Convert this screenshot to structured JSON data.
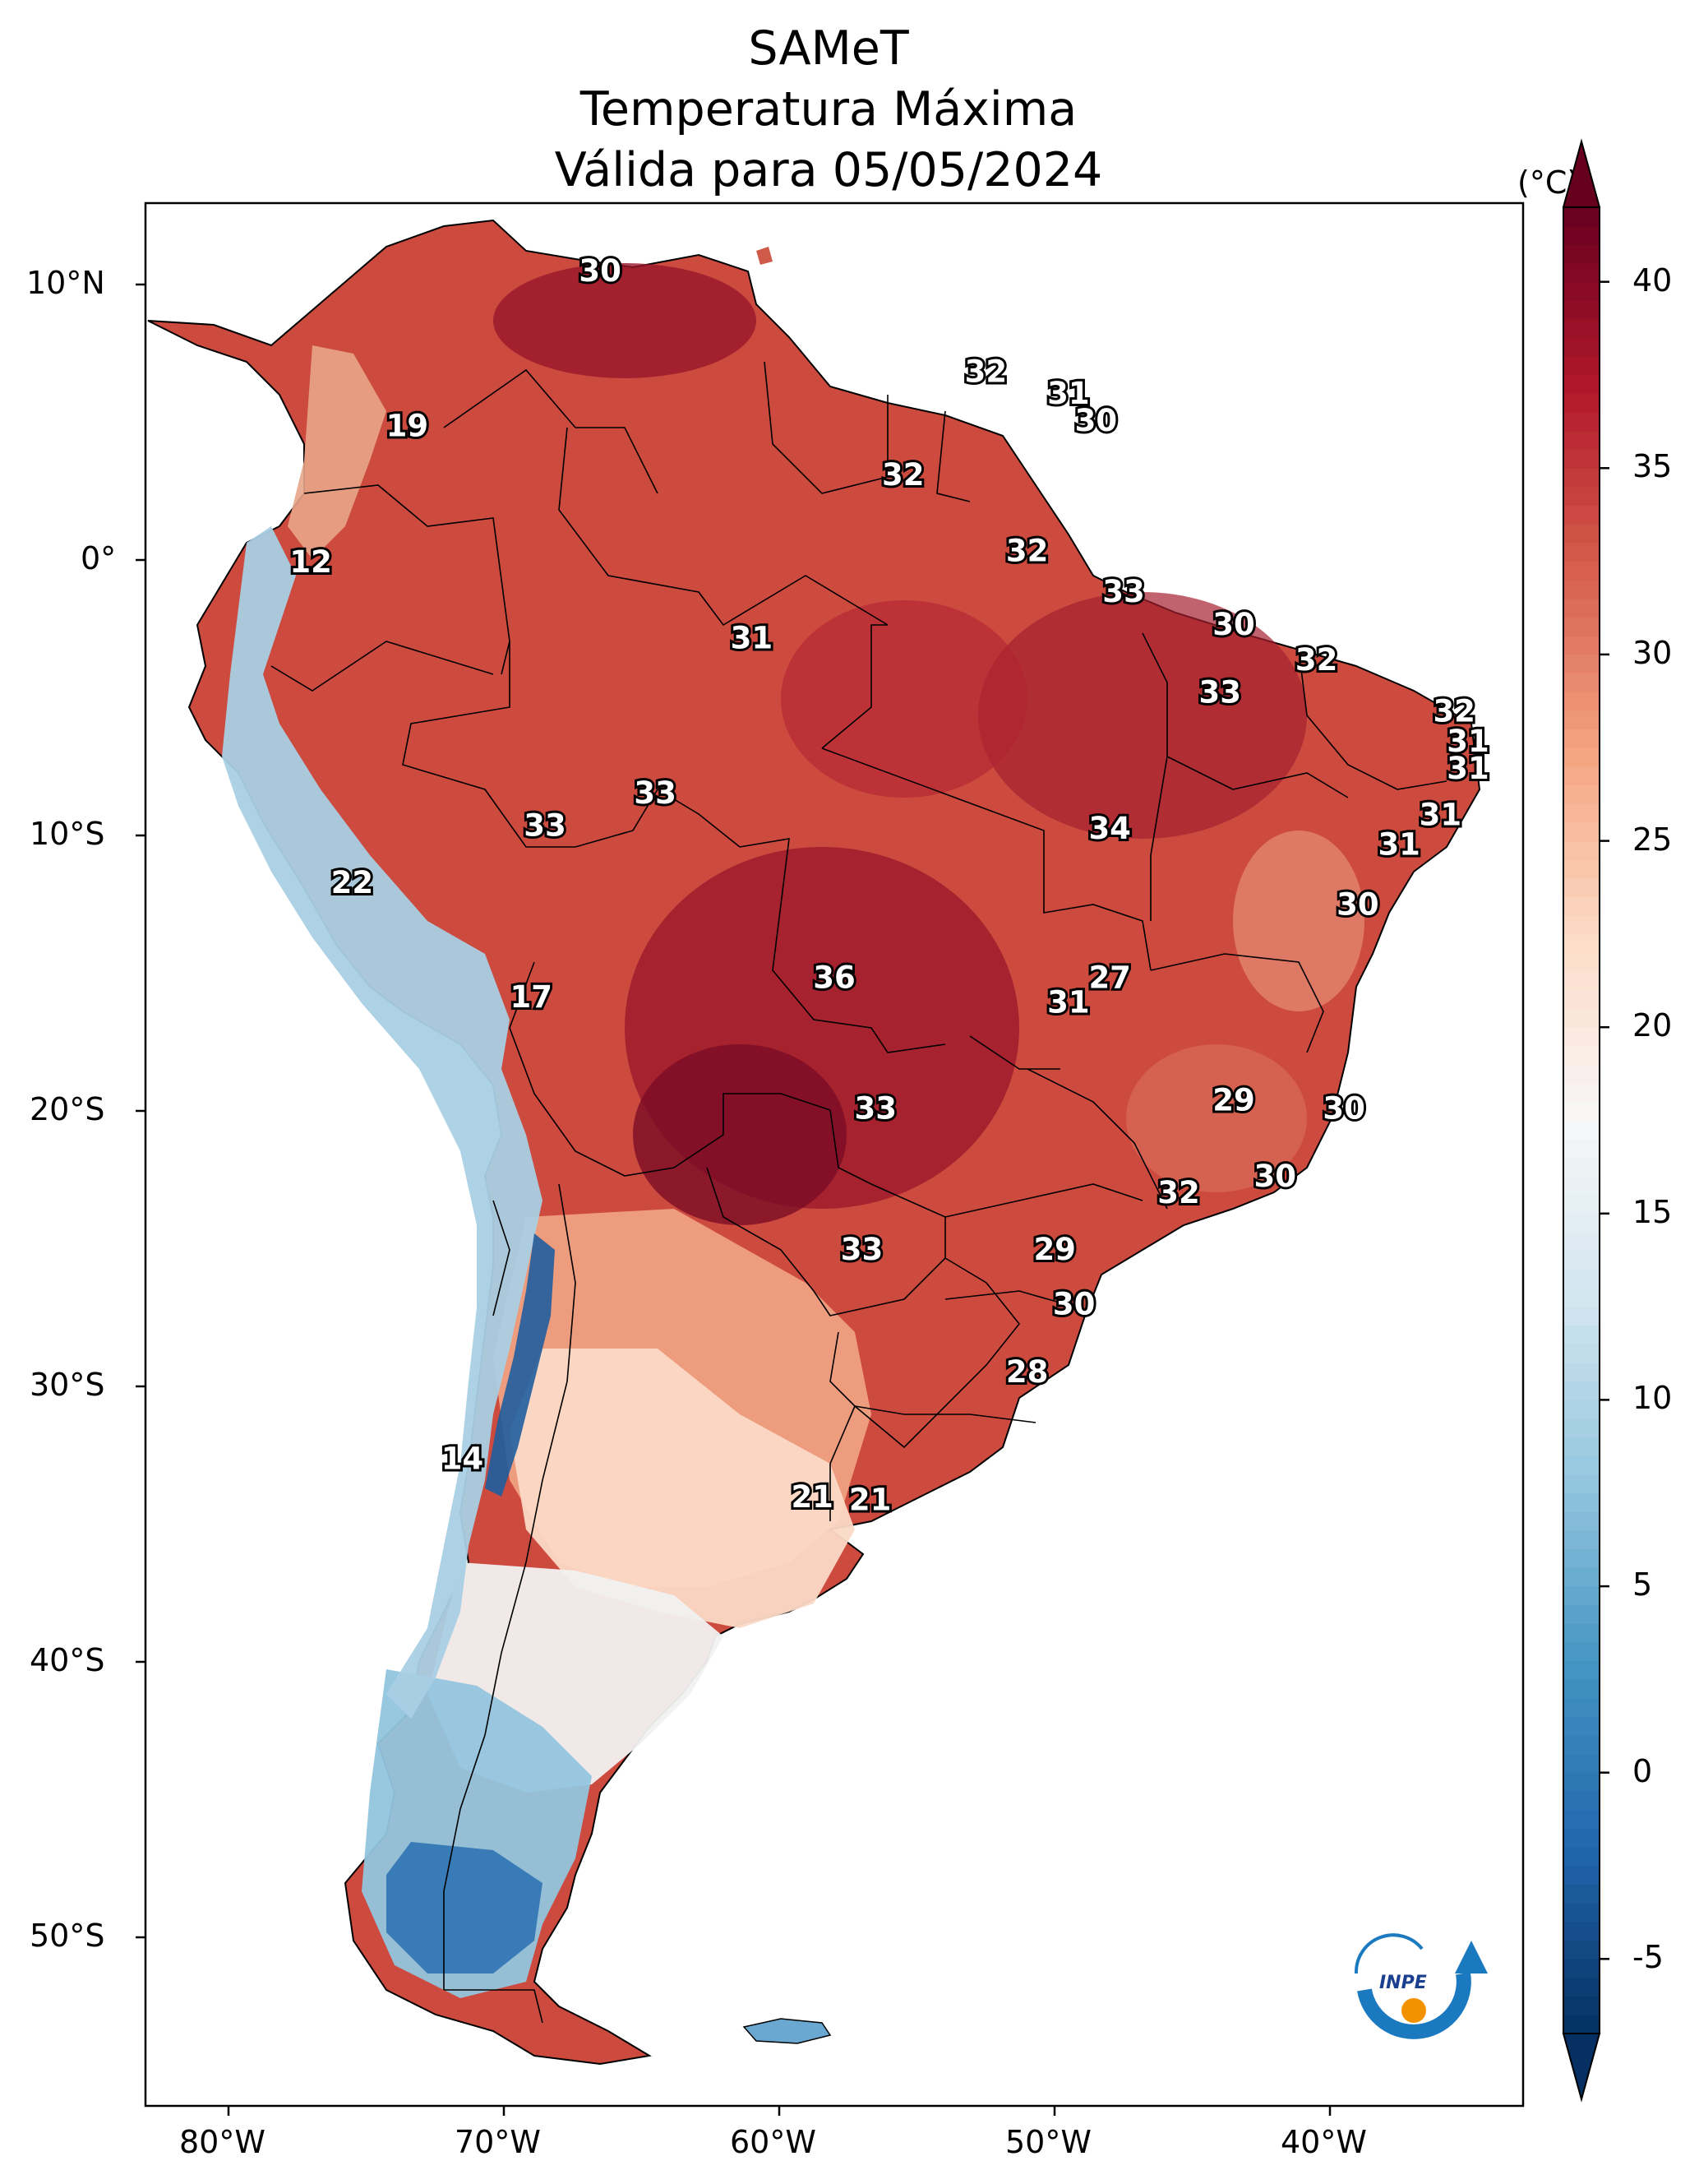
{
  "title": {
    "line1": "SAMeT",
    "line2": "Temperatura Máxima",
    "line3": "Válida para 05/05/2024"
  },
  "axes": {
    "longitude_ticks": [
      "80°W",
      "70°W",
      "60°W",
      "50°W",
      "40°W"
    ],
    "latitude_ticks": [
      "10°N",
      "0°",
      "10°S",
      "20°S",
      "30°S",
      "40°S",
      "50°S"
    ]
  },
  "colorbar": {
    "unit": "(°C)",
    "min": -7,
    "max": 42,
    "ticks": [
      "40",
      "35",
      "30",
      "25",
      "20",
      "15",
      "10",
      "5",
      "0",
      "-5"
    ],
    "extend": "both",
    "colors": [
      "#053061",
      "#2166ac",
      "#4393c3",
      "#92c5de",
      "#d1e5f0",
      "#f7f7f7",
      "#fddbc7",
      "#f4a582",
      "#d6604d",
      "#b2182b",
      "#67001f"
    ]
  },
  "logo": {
    "text": "INPE"
  },
  "chart_data": {
    "type": "heatmap",
    "variable": "Temperatura Máxima",
    "unit": "°C",
    "xlim": [
      -83,
      -33
    ],
    "ylim": [
      -57,
      13
    ],
    "labeled_values": [
      {
        "lon": -66.5,
        "lat": 10.5,
        "value": 30
      },
      {
        "lon": -52.5,
        "lat": 6.8,
        "value": 32
      },
      {
        "lon": -49.5,
        "lat": 6.0,
        "value": 31
      },
      {
        "lon": -48.5,
        "lat": 5.0,
        "value": 30
      },
      {
        "lon": -73.5,
        "lat": 4.8,
        "value": 19
      },
      {
        "lon": -55.5,
        "lat": 3.0,
        "value": 32
      },
      {
        "lon": -51.0,
        "lat": 0.2,
        "value": 32
      },
      {
        "lon": -47.5,
        "lat": -1.3,
        "value": 33
      },
      {
        "lon": -43.5,
        "lat": -2.5,
        "value": 30
      },
      {
        "lon": -40.5,
        "lat": -3.8,
        "value": 32
      },
      {
        "lon": -44.0,
        "lat": -5.0,
        "value": 33
      },
      {
        "lon": -35.5,
        "lat": -5.7,
        "value": 32
      },
      {
        "lon": -35.0,
        "lat": -6.8,
        "value": 31
      },
      {
        "lon": -35.0,
        "lat": -7.8,
        "value": 31
      },
      {
        "lon": -77.0,
        "lat": -0.2,
        "value": 12
      },
      {
        "lon": -61.0,
        "lat": -3.0,
        "value": 31
      },
      {
        "lon": -64.5,
        "lat": -8.7,
        "value": 33
      },
      {
        "lon": -68.5,
        "lat": -9.9,
        "value": 33
      },
      {
        "lon": -48.0,
        "lat": -10.0,
        "value": 34
      },
      {
        "lon": -36.0,
        "lat": -9.5,
        "value": 31
      },
      {
        "lon": -37.5,
        "lat": -10.6,
        "value": 31
      },
      {
        "lon": -75.5,
        "lat": -12.0,
        "value": 22
      },
      {
        "lon": -39.0,
        "lat": -12.8,
        "value": 30
      },
      {
        "lon": -58.0,
        "lat": -15.5,
        "value": 36
      },
      {
        "lon": -48.0,
        "lat": -15.5,
        "value": 27
      },
      {
        "lon": -49.5,
        "lat": -16.4,
        "value": 31
      },
      {
        "lon": -69.0,
        "lat": -16.2,
        "value": 17
      },
      {
        "lon": -43.5,
        "lat": -20.0,
        "value": 29
      },
      {
        "lon": -39.5,
        "lat": -20.3,
        "value": 30
      },
      {
        "lon": -56.5,
        "lat": -20.3,
        "value": 33
      },
      {
        "lon": -42.0,
        "lat": -22.8,
        "value": 30
      },
      {
        "lon": -45.5,
        "lat": -23.4,
        "value": 32
      },
      {
        "lon": -57.0,
        "lat": -25.5,
        "value": 33
      },
      {
        "lon": -50.0,
        "lat": -25.5,
        "value": 29
      },
      {
        "lon": -49.3,
        "lat": -27.5,
        "value": 30
      },
      {
        "lon": -51.0,
        "lat": -30.0,
        "value": 28
      },
      {
        "lon": -71.5,
        "lat": -33.2,
        "value": 14
      },
      {
        "lon": -58.8,
        "lat": -34.6,
        "value": 21
      },
      {
        "lon": -56.7,
        "lat": -34.7,
        "value": 21
      }
    ]
  }
}
